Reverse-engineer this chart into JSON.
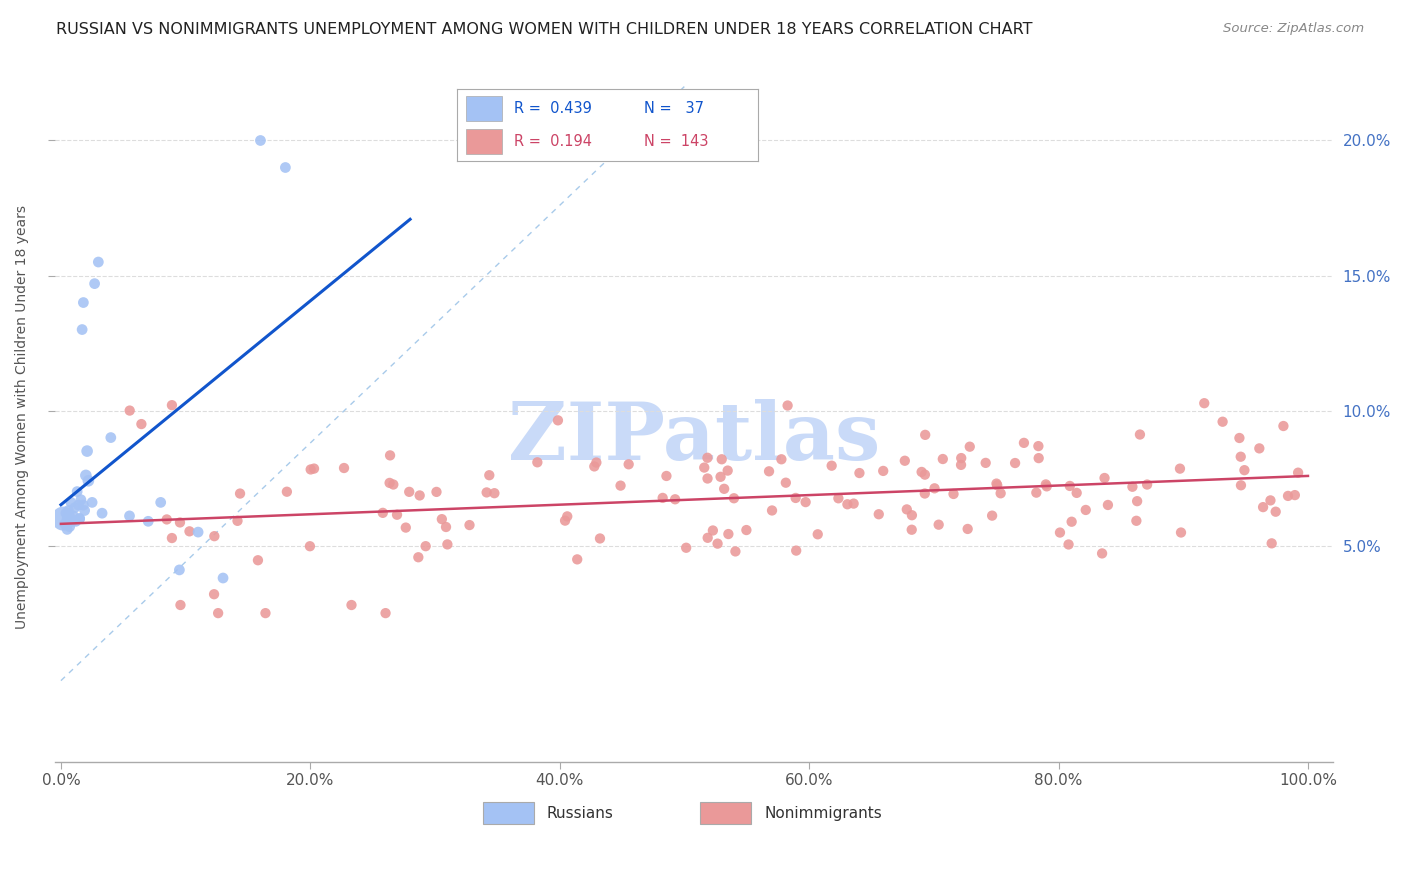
{
  "title": "RUSSIAN VS NONIMMIGRANTS UNEMPLOYMENT AMONG WOMEN WITH CHILDREN UNDER 18 YEARS CORRELATION CHART",
  "source": "Source: ZipAtlas.com",
  "ylabel": "Unemployment Among Women with Children Under 18 years",
  "color_russian": "#a4c2f4",
  "color_nonimm": "#ea9999",
  "color_russian_line": "#1155cc",
  "color_nonimm_line": "#cc4466",
  "color_dashed": "#9fc5e8",
  "watermark_color": "#c9daf8",
  "bg_color": "#ffffff",
  "grid_color": "#e0e0e0",
  "legend_text_color_blue": "#1155cc",
  "legend_text_color_pink": "#cc4466",
  "ytick_color": "#4472c4"
}
